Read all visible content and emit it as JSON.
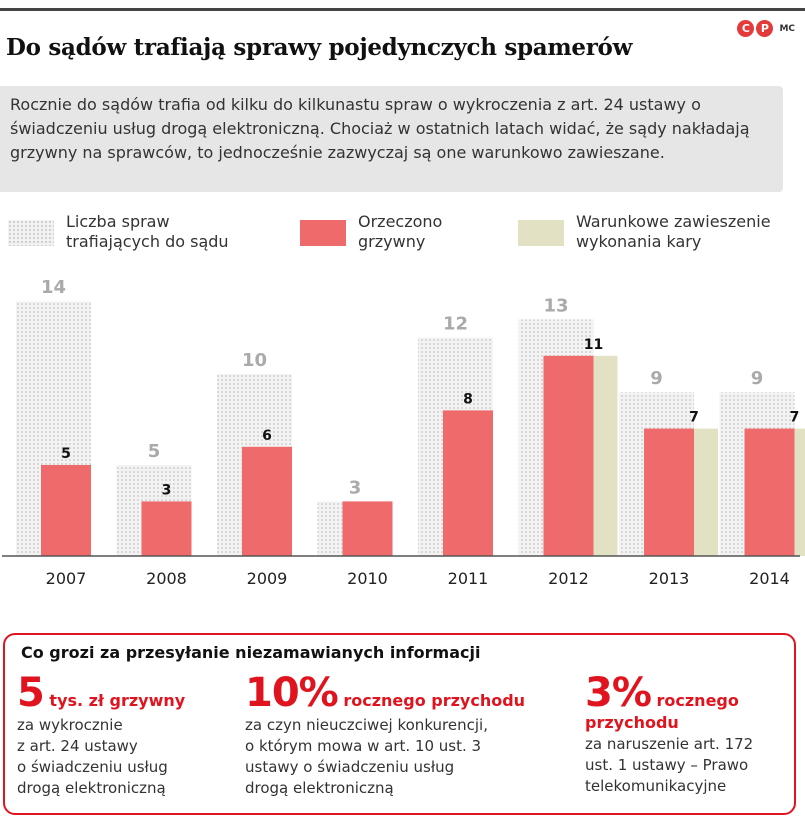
{
  "title": "Do sądów trafiają sprawy pojedynczych spamerów",
  "logo": {
    "c": "C",
    "p": "P",
    "mc": "MC"
  },
  "intro": "Rocznie do sądów trafia od kilku do kilkunastu spraw o wykroczenia z art. 24 ustawy o świadczeniu usług drogą elektroniczną. Chociaż w ostatnich latach widać, że sądy nakładają grzywny na sprawców, to jednocześnie zazwyczaj są one warunkowo zawieszane.",
  "legend": [
    {
      "line1": "Liczba spraw",
      "line2": "trafiających do sądu"
    },
    {
      "line1": "Orzeczono",
      "line2": "grzywny"
    },
    {
      "line1": "Warunkowe zawieszenie",
      "line2": "wykonania kary"
    }
  ],
  "colors": {
    "red": "#ef6a6a",
    "beige": "#e3e1c4",
    "dots": "#c8c8c8",
    "gray_label": "#aaaaaa",
    "accent": "#e0141e"
  },
  "chart_data": {
    "type": "bar",
    "categories": [
      "2007",
      "2008",
      "2009",
      "2010",
      "2011",
      "2012",
      "2013",
      "2014"
    ],
    "series": [
      {
        "name": "Liczba spraw trafiających do sądu",
        "values": [
          14,
          5,
          10,
          3,
          12,
          13,
          9,
          9
        ]
      },
      {
        "name": "Orzeczono grzywny",
        "values": [
          5,
          3,
          6,
          3,
          8,
          11,
          7,
          7
        ]
      },
      {
        "name": "Warunkowe zawieszenie wykonania kary",
        "values": [
          null,
          null,
          null,
          null,
          null,
          11,
          7,
          7
        ]
      }
    ],
    "labels_red": [
      "5",
      "3",
      "6",
      "",
      "8",
      "11",
      "7",
      "7"
    ],
    "labels_total": [
      "14",
      "5",
      "10",
      "3",
      "12",
      "13",
      "9",
      "9"
    ],
    "ylim": [
      0,
      15
    ]
  },
  "box": {
    "title": "Co grozi za przesyłanie niezamawianych informacji",
    "items": [
      {
        "big": "5",
        "suffix": " tys. zł grzywny",
        "desc1": "za wykrocznie",
        "desc2": "z art. 24 ustawy",
        "desc3": "o świadczeniu usług",
        "desc4": "drogą elektroniczną"
      },
      {
        "big": "10%",
        "suffix": " rocznego przychodu",
        "desc1": "za czyn nieuczciwej konkurencji,",
        "desc2": "o którym mowa w art. 10 ust. 3",
        "desc3": "ustawy o świadczeniu usług",
        "desc4": "drogą elektroniczną"
      },
      {
        "big": "3%",
        "suffix": " rocznego",
        "suffix2": "przychodu",
        "desc1": "za naruszenie art. 172",
        "desc2": "ust. 1 ustawy – Prawo",
        "desc3": "telekomunikacyjne",
        "desc4": ""
      }
    ]
  }
}
